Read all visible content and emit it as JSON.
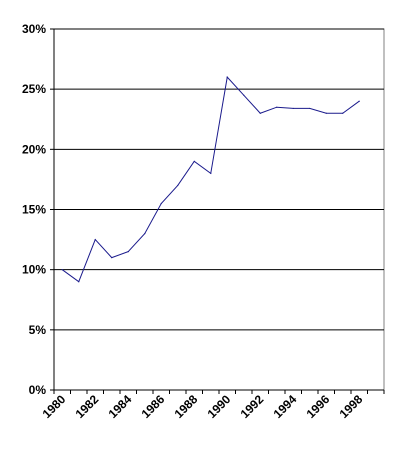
{
  "chart_data": {
    "type": "line",
    "title": "",
    "xlabel": "",
    "ylabel": "",
    "x": [
      1980,
      1981,
      1982,
      1983,
      1984,
      1985,
      1986,
      1987,
      1988,
      1989,
      1990,
      1991,
      1992,
      1993,
      1994,
      1995,
      1996,
      1997,
      1998,
      1999
    ],
    "series": [
      {
        "values": [
          10.0,
          9.0,
          12.5,
          11.0,
          11.5,
          13.0,
          15.5,
          17.0,
          19.0,
          18.0,
          26.0,
          24.5,
          23.0,
          23.5,
          23.4,
          23.4,
          23.0,
          23.0,
          24.0,
          null
        ]
      }
    ],
    "ylim": [
      0,
      30
    ],
    "yticks": [
      "0%",
      "5%",
      "10%",
      "15%",
      "20%",
      "25%",
      "30%"
    ],
    "xtick_labels": [
      "1980",
      "1982",
      "1984",
      "1986",
      "1988",
      "1990",
      "1992",
      "1994",
      "1996",
      "1998"
    ],
    "grid": true,
    "legend": "none",
    "colors": {
      "line": "#1a1a8c",
      "grid": "#000000",
      "frame": "#808080"
    }
  }
}
